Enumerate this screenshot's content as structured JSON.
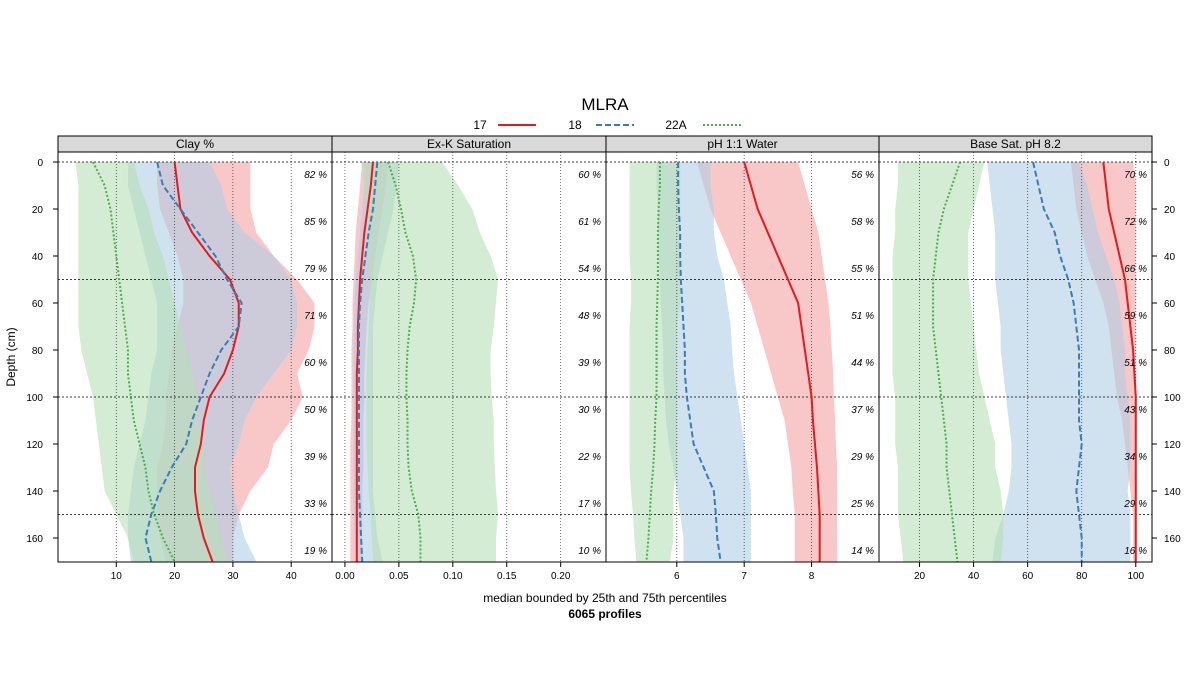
{
  "chart_data": {
    "type": "area",
    "title": "MLRA",
    "ylabel": "Depth (cm)",
    "xlabel": "median bounded by 25th and 75th percentiles",
    "subtitle": "6065 profiles",
    "ylim": [
      0,
      170
    ],
    "y_ticks": [
      0,
      20,
      40,
      60,
      80,
      100,
      120,
      140,
      160
    ],
    "y_gridlines_dense": [
      0,
      50,
      100,
      150
    ],
    "depths": [
      0,
      10,
      20,
      30,
      40,
      50,
      60,
      70,
      80,
      90,
      100,
      110,
      120,
      130,
      140,
      150,
      160,
      170
    ],
    "legend": [
      {
        "name": "17",
        "color": "#e41a1c",
        "dash": "solid"
      },
      {
        "name": "18",
        "color": "#377eb8",
        "dash": "dashed"
      },
      {
        "name": "22A",
        "color": "#4daf4a",
        "dash": "dotted"
      }
    ],
    "percent_depths": [
      5,
      25,
      45,
      65,
      85,
      105,
      125,
      145,
      165
    ],
    "panels": [
      {
        "label": "Clay %",
        "xlim": [
          0,
          47
        ],
        "x_ticks": [
          "10",
          "20",
          "30",
          "40"
        ],
        "x_tick_values": [
          10,
          20,
          30,
          40
        ],
        "percents": [
          "82 %",
          "85 %",
          "79 %",
          "71 %",
          "60 %",
          "50 %",
          "39 %",
          "33 %",
          "19 %"
        ],
        "series": [
          {
            "name": "17",
            "median": [
              20,
              20.5,
              21,
              23,
              26,
              29.5,
              31,
              31,
              30,
              28.5,
              26,
              25,
              24.5,
              23.5,
              23.5,
              24,
              25,
              26.5
            ],
            "p25": [
              17,
              17,
              17.5,
              19,
              20.5,
              21.5,
              21.5,
              20.5,
              19.5,
              19,
              18.5,
              18.5,
              18,
              17,
              17,
              17,
              17.5,
              18.5
            ],
            "p75": [
              33,
              33,
              33,
              34,
              37,
              41,
              44,
              44,
              43,
              41,
              42,
              40,
              37,
              36,
              33,
              31,
              30,
              30
            ]
          },
          {
            "name": "18",
            "median": [
              17,
              18,
              21,
              24,
              27,
              29,
              31.5,
              31,
              28,
              26,
              24.5,
              23,
              22,
              19.5,
              17.5,
              16,
              15,
              16
            ],
            "p25": [
              12,
              12,
              13,
              14,
              15,
              16,
              17,
              17,
              17,
              16,
              15.5,
              15,
              14,
              13,
              12.5,
              12,
              12,
              12.5
            ],
            "p75": [
              26,
              28,
              29,
              32,
              37,
              40,
              41,
              41,
              40,
              37,
              34,
              32,
              31,
              29.5,
              30,
              31,
              32,
              34
            ]
          },
          {
            "name": "22A",
            "median": [
              6,
              8,
              9,
              9.5,
              10,
              10.5,
              11,
              11.5,
              12,
              12,
              12.5,
              13,
              14,
              15,
              15.5,
              16.5,
              18,
              20
            ],
            "p25": [
              3,
              3.5,
              3.5,
              3.5,
              3.5,
              3.5,
              3.5,
              3.5,
              4,
              5,
              6,
              6.5,
              7,
              7.5,
              8,
              10,
              12,
              13
            ],
            "p75": [
              13,
              14,
              15.5,
              16.5,
              18,
              19,
              20,
              21,
              22,
              23,
              24,
              24,
              25,
              25,
              26,
              27,
              28,
              29
            ]
          }
        ]
      },
      {
        "label": "Ex-K Saturation",
        "xlim": [
          -0.012,
          0.242
        ],
        "x_ticks": [
          "0.00",
          "0.05",
          "0.10",
          "0.15",
          "0.20"
        ],
        "x_tick_values": [
          0,
          0.05,
          0.1,
          0.15,
          0.2
        ],
        "percents": [
          "60 %",
          "61 %",
          "54 %",
          "48 %",
          "39 %",
          "30 %",
          "22 %",
          "17 %",
          "10 %"
        ],
        "series": [
          {
            "name": "17",
            "median": [
              0.026,
              0.024,
              0.021,
              0.018,
              0.016,
              0.014,
              0.013,
              0.012,
              0.012,
              0.011,
              0.011,
              0.011,
              0.011,
              0.011,
              0.011,
              0.011,
              0.011,
              0.011
            ],
            "p25": [
              0.016,
              0.014,
              0.012,
              0.01,
              0.009,
              0.008,
              0.007,
              0.007,
              0.006,
              0.006,
              0.006,
              0.006,
              0.005,
              0.005,
              0.005,
              0.005,
              0.005,
              0.005
            ],
            "p75": [
              0.04,
              0.038,
              0.035,
              0.031,
              0.028,
              0.025,
              0.022,
              0.02,
              0.019,
              0.018,
              0.018,
              0.017,
              0.017,
              0.017,
              0.016,
              0.016,
              0.016,
              0.016
            ]
          },
          {
            "name": "18",
            "median": [
              0.03,
              0.028,
              0.026,
              0.022,
              0.019,
              0.016,
              0.014,
              0.013,
              0.013,
              0.013,
              0.013,
              0.013,
              0.013,
              0.013,
              0.013,
              0.014,
              0.015,
              0.016
            ],
            "p25": [
              0.02,
              0.018,
              0.016,
              0.014,
              0.012,
              0.01,
              0.009,
              0.008,
              0.008,
              0.008,
              0.008,
              0.008,
              0.008,
              0.008,
              0.008,
              0.008,
              0.009,
              0.01
            ],
            "p75": [
              0.05,
              0.048,
              0.045,
              0.04,
              0.035,
              0.03,
              0.028,
              0.026,
              0.026,
              0.026,
              0.026,
              0.026,
              0.026,
              0.026,
              0.026,
              0.028,
              0.03,
              0.035
            ]
          },
          {
            "name": "22A",
            "median": [
              0.04,
              0.047,
              0.052,
              0.056,
              0.063,
              0.066,
              0.064,
              0.06,
              0.058,
              0.057,
              0.057,
              0.058,
              0.058,
              0.059,
              0.062,
              0.068,
              0.07,
              0.07
            ],
            "p25": [
              0.015,
              0.018,
              0.02,
              0.021,
              0.022,
              0.023,
              0.023,
              0.022,
              0.021,
              0.02,
              0.02,
              0.02,
              0.02,
              0.021,
              0.022,
              0.024,
              0.025,
              0.026
            ],
            "p75": [
              0.09,
              0.105,
              0.118,
              0.125,
              0.135,
              0.142,
              0.14,
              0.138,
              0.135,
              0.135,
              0.136,
              0.138,
              0.138,
              0.139,
              0.14,
              0.142,
              0.14,
              0.14
            ]
          }
        ]
      },
      {
        "label": "pH 1:1 Water",
        "xlim": [
          4.95,
          9.0
        ],
        "x_ticks": [
          "6",
          "7",
          "8"
        ],
        "x_tick_values": [
          6,
          7,
          8
        ],
        "percents": [
          "56 %",
          "58 %",
          "55 %",
          "51 %",
          "44 %",
          "37 %",
          "29 %",
          "25 %",
          "14 %"
        ],
        "series": [
          {
            "name": "17",
            "median": [
              7.0,
              7.1,
              7.2,
              7.35,
              7.5,
              7.65,
              7.8,
              7.85,
              7.9,
              7.95,
              8.0,
              8.02,
              8.05,
              8.08,
              8.1,
              8.12,
              8.12,
              8.12
            ],
            "p25": [
              6.3,
              6.4,
              6.5,
              6.65,
              6.8,
              6.95,
              7.1,
              7.2,
              7.3,
              7.4,
              7.5,
              7.6,
              7.65,
              7.7,
              7.72,
              7.75,
              7.75,
              7.75
            ],
            "p75": [
              7.8,
              7.9,
              8.0,
              8.1,
              8.15,
              8.2,
              8.25,
              8.28,
              8.3,
              8.32,
              8.33,
              8.35,
              8.36,
              8.38,
              8.38,
              8.38,
              8.38,
              8.38
            ]
          },
          {
            "name": "18",
            "median": [
              6.02,
              6.02,
              6.03,
              6.05,
              6.05,
              6.06,
              6.08,
              6.1,
              6.12,
              6.12,
              6.15,
              6.2,
              6.25,
              6.4,
              6.55,
              6.58,
              6.6,
              6.65
            ],
            "p25": [
              5.7,
              5.7,
              5.72,
              5.72,
              5.73,
              5.75,
              5.76,
              5.78,
              5.8,
              5.8,
              5.82,
              5.84,
              5.88,
              5.95,
              6.0,
              6.05,
              6.1,
              6.1
            ],
            "p75": [
              6.5,
              6.5,
              6.55,
              6.55,
              6.6,
              6.7,
              6.75,
              6.8,
              6.82,
              6.85,
              6.9,
              6.95,
              7.0,
              7.05,
              7.1,
              7.1,
              7.1,
              7.1
            ]
          },
          {
            "name": "22A",
            "median": [
              5.75,
              5.75,
              5.73,
              5.72,
              5.72,
              5.72,
              5.71,
              5.7,
              5.7,
              5.7,
              5.7,
              5.68,
              5.67,
              5.65,
              5.62,
              5.6,
              5.58,
              5.55
            ],
            "p25": [
              5.3,
              5.3,
              5.3,
              5.3,
              5.3,
              5.32,
              5.32,
              5.3,
              5.3,
              5.3,
              5.3,
              5.3,
              5.3,
              5.3,
              5.32,
              5.35,
              5.37,
              5.4
            ],
            "p75": [
              6.05,
              6.05,
              6.05,
              6.05,
              6.05,
              6.05,
              6.05,
              6.0,
              6.0,
              6.0,
              6.0,
              6.0,
              6.0,
              6.0,
              5.95,
              5.95,
              5.95,
              5.9
            ]
          }
        ]
      },
      {
        "label": "Base Sat. pH 8.2",
        "xlim": [
          5,
          106
        ],
        "x_ticks": [
          "20",
          "40",
          "60",
          "80",
          "100"
        ],
        "x_tick_values": [
          20,
          40,
          60,
          80,
          100
        ],
        "percents": [
          "70 %",
          "72 %",
          "66 %",
          "59 %",
          "51 %",
          "43 %",
          "34 %",
          "29 %",
          "16 %"
        ],
        "series": [
          {
            "name": "17",
            "median": [
              88,
              89,
              90,
              92,
              94,
              96,
              97,
              98,
              99,
              99.5,
              100,
              100,
              100,
              100,
              100,
              100,
              100,
              100
            ],
            "p25": [
              76,
              77,
              78,
              80,
              82,
              85,
              88,
              90,
              91,
              92,
              93,
              95,
              96,
              97,
              98,
              99,
              99,
              99
            ],
            "p75": [
              99,
              100,
              100,
              100,
              100,
              100,
              100,
              100,
              100,
              100,
              100,
              100,
              100,
              100,
              100,
              100,
              100,
              100
            ]
          },
          {
            "name": "18",
            "median": [
              62,
              64,
              66,
              70,
              72,
              75,
              77,
              78,
              79,
              79,
              79,
              79,
              80,
              79,
              78,
              79,
              80,
              80
            ],
            "p25": [
              45,
              46,
              47,
              48,
              48,
              48,
              49,
              50,
              50,
              51,
              52,
              53,
              54,
              54,
              53,
              51,
              48,
              47
            ],
            "p75": [
              79,
              82,
              84,
              86,
              89,
              92,
              94,
              95,
              96,
              96,
              97,
              98,
              98,
              98,
              97,
              98,
              98,
              98
            ]
          },
          {
            "name": "22A",
            "median": [
              35,
              32,
              29,
              27,
              26,
              25,
              25,
              25,
              26,
              27,
              28,
              29,
              30,
              30,
              31,
              32,
              33,
              34
            ],
            "p25": [
              12,
              12,
              11,
              11,
              10,
              10,
              10,
              10,
              10,
              10,
              11,
              11,
              11,
              12,
              12,
              12,
              13,
              14
            ],
            "p75": [
              44,
              42,
              40,
              38,
              38,
              38,
              39,
              40,
              41,
              42,
              44,
              46,
              48,
              48,
              50,
              51,
              51,
              50
            ]
          }
        ]
      }
    ]
  }
}
